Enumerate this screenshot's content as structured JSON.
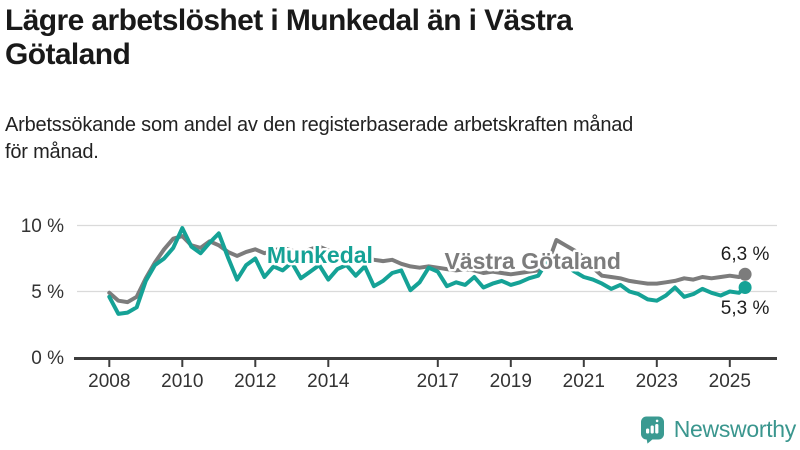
{
  "header": {
    "title": "Lägre arbetslöshet i Munkedal än i Västra Götaland",
    "title_lines": [
      "Lägre arbetslöshet i Munkedal än i Västra",
      "Götaland"
    ],
    "subtitle_lines": [
      "Arbetssökande som andel av den registerbaserade arbetskraften månad",
      "för månad."
    ]
  },
  "footer": {
    "brand": "Newsworthy",
    "logo_icon": "bar-chart-speech-bubble-icon",
    "brand_color": "#3a968e",
    "logo_fill": "#3a9a91"
  },
  "colors": {
    "munkedal_teal": "#15a296",
    "vastra_gray": "#7c7c7c",
    "axis_dark": "#3d3d3d",
    "gridline": "#dadada",
    "text_dark": "#191919"
  },
  "chart_data": {
    "type": "line",
    "title": "Lägre arbetslöshet i Munkedal än i Västra Götaland",
    "subtitle": "Arbetssökande som andel av den registerbaserade arbetskraften månad för månad.",
    "xlabel": "",
    "ylabel": "",
    "ylim": [
      0,
      10.5
    ],
    "grid": "horizontal",
    "legend": "inline-labels",
    "x_ticks": [
      2008,
      2010,
      2012,
      2014,
      2017,
      2019,
      2021,
      2023,
      2025
    ],
    "y_ticks": [
      {
        "value": 0,
        "label": "0 %"
      },
      {
        "value": 5,
        "label": "5 %"
      },
      {
        "value": 10,
        "label": "10 %"
      }
    ],
    "x": [
      2008,
      2008.25,
      2008.5,
      2008.75,
      2009,
      2009.25,
      2009.5,
      2009.75,
      2010,
      2010.25,
      2010.5,
      2010.75,
      2011,
      2011.25,
      2011.5,
      2011.75,
      2012,
      2012.25,
      2012.5,
      2012.75,
      2013,
      2013.25,
      2013.5,
      2013.75,
      2014,
      2014.25,
      2014.5,
      2014.75,
      2015,
      2015.25,
      2015.5,
      2015.75,
      2016,
      2016.25,
      2016.5,
      2016.75,
      2017,
      2017.25,
      2017.5,
      2017.75,
      2018,
      2018.25,
      2018.5,
      2018.75,
      2019,
      2019.25,
      2019.5,
      2019.75,
      2020,
      2020.25,
      2020.5,
      2020.75,
      2021,
      2021.25,
      2021.5,
      2021.75,
      2022,
      2022.25,
      2022.5,
      2022.75,
      2023,
      2023.25,
      2023.5,
      2023.75,
      2024,
      2024.25,
      2024.5,
      2024.75,
      2025,
      2025.25,
      2025.42
    ],
    "series": [
      {
        "name": "Munkedal",
        "color": "#15a296",
        "end_label": "5,3 %",
        "end_value": 5.3,
        "end_label_side": "below",
        "label_pos": {
          "x": 2013.77,
          "y": 7.15
        },
        "values": [
          4.6,
          3.3,
          3.4,
          3.8,
          5.8,
          7.0,
          7.5,
          8.3,
          9.8,
          8.4,
          7.9,
          8.7,
          9.4,
          7.6,
          5.9,
          7.0,
          7.5,
          6.1,
          6.9,
          6.6,
          7.2,
          6.0,
          6.5,
          7.0,
          5.9,
          6.7,
          7.0,
          6.2,
          6.9,
          5.4,
          5.8,
          6.4,
          6.6,
          5.1,
          5.7,
          6.8,
          6.5,
          5.4,
          5.7,
          5.5,
          6.1,
          5.3,
          5.6,
          5.8,
          5.5,
          5.7,
          6.0,
          6.2,
          7.3,
          7.5,
          7.0,
          6.5,
          6.1,
          5.9,
          5.6,
          5.2,
          5.5,
          5.0,
          4.8,
          4.4,
          4.3,
          4.7,
          5.3,
          4.6,
          4.8,
          5.2,
          4.9,
          4.7,
          5.0,
          4.9,
          5.3
        ]
      },
      {
        "name": "Västra Götaland",
        "color": "#7c7c7c",
        "end_label": "6,3 %",
        "end_value": 6.3,
        "end_label_side": "above",
        "label_pos": {
          "x": 2019.6,
          "y": 6.7
        },
        "values": [
          4.9,
          4.3,
          4.2,
          4.6,
          6.0,
          7.2,
          8.2,
          9.0,
          9.2,
          8.5,
          8.3,
          8.8,
          8.5,
          8.0,
          7.7,
          8.0,
          8.2,
          7.9,
          8.1,
          8.3,
          8.1,
          7.9,
          8.2,
          8.4,
          8.1,
          7.9,
          8.1,
          7.9,
          7.7,
          7.4,
          7.3,
          7.4,
          7.1,
          6.9,
          6.8,
          6.9,
          6.8,
          6.7,
          6.6,
          6.7,
          6.6,
          6.4,
          6.5,
          6.4,
          6.3,
          6.4,
          6.5,
          6.6,
          7.0,
          8.9,
          8.5,
          8.1,
          7.6,
          6.8,
          6.2,
          6.1,
          6.0,
          5.8,
          5.7,
          5.6,
          5.6,
          5.7,
          5.8,
          6.0,
          5.9,
          6.1,
          6.0,
          6.1,
          6.2,
          6.1,
          6.3
        ]
      }
    ]
  }
}
